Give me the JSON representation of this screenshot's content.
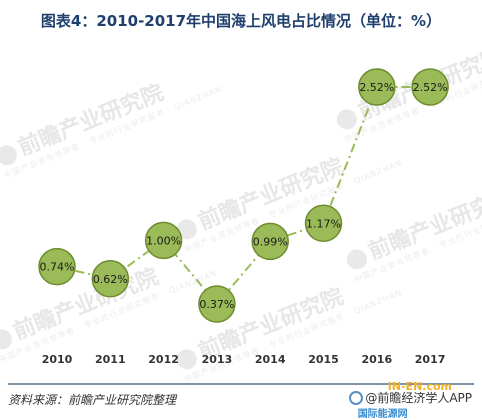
{
  "title": "图表4：2010-2017年中国海上风电占比情况（单位：%）",
  "watermark": {
    "brand": "前瞻产业研究院",
    "sub": "中国产业咨询领导者 · 专业的行业研究服务 · QIANZHAN"
  },
  "source": "资料来源：前瞻产业研究院整理",
  "brand_label": "@前瞻经济学人APP",
  "site_label": "IN-EN.com",
  "site_label_cn": "国际能源网",
  "colors": {
    "marker_fill": "#9bbb59",
    "marker_edge": "#6e8c2e",
    "line": "#9bbb59",
    "title": "#1f3f6e"
  },
  "chart_data": {
    "type": "line",
    "title": "图表4：2010-2017年中国海上风电占比情况（单位：%）",
    "xlabel": "",
    "ylabel": "",
    "categories": [
      "2010",
      "2011",
      "2012",
      "2013",
      "2014",
      "2015",
      "2016",
      "2017"
    ],
    "values": [
      0.74,
      0.62,
      1.0,
      0.37,
      0.99,
      1.17,
      2.52,
      2.52
    ],
    "data_labels": [
      "0.74%",
      "0.62%",
      "1.00%",
      "0.37%",
      "0.99%",
      "1.17%",
      "2.52%",
      "2.52%"
    ],
    "line_style": "dash-dot",
    "grid": false,
    "legend": "none"
  }
}
